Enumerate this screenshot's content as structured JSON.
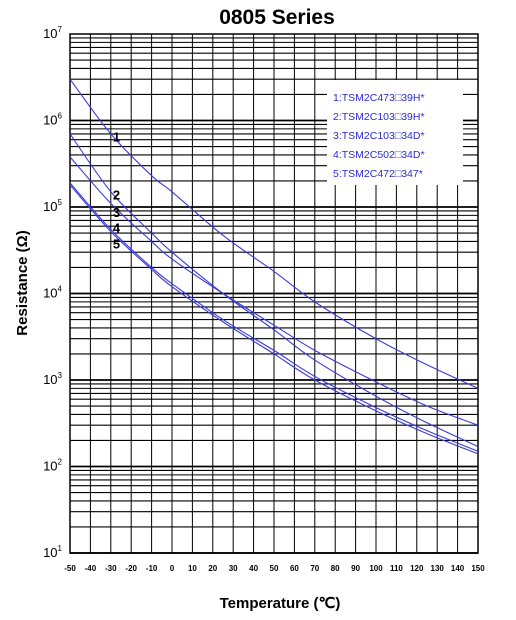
{
  "colors": {
    "series": "#3a3ae0",
    "grid": "#000000",
    "legend_text": "#2a2ad4"
  },
  "chart_data": {
    "type": "line",
    "title": "0805 Series",
    "xlabel": "Temperature (℃)",
    "ylabel": "Resistance (Ω)",
    "xlim": [
      -50,
      150
    ],
    "ylim": [
      10,
      10000000
    ],
    "yscale": "log",
    "grid": true,
    "legend_position": "top-right",
    "x_ticks": [
      "-50",
      "-40",
      "-30",
      "-20",
      "-10",
      "0",
      "10",
      "20",
      "30",
      "40",
      "50",
      "60",
      "70",
      "80",
      "90",
      "100",
      "110",
      "120",
      "130",
      "140",
      "150"
    ],
    "y_ticks": [
      {
        "base": "10",
        "exp": "7"
      },
      {
        "base": "10",
        "exp": "6"
      },
      {
        "base": "10",
        "exp": "5"
      },
      {
        "base": "10",
        "exp": "4"
      },
      {
        "base": "10",
        "exp": "3"
      },
      {
        "base": "10",
        "exp": "2"
      },
      {
        "base": "10",
        "exp": "1"
      }
    ],
    "x": [
      -50,
      -30,
      -10,
      0,
      25,
      50,
      70,
      100,
      125,
      150
    ],
    "series": [
      {
        "name": "1:TSM2C473□39H*",
        "marker": "1",
        "values": [
          3000000,
          700000,
          230000,
          150000,
          47000,
          18000,
          8000,
          3000,
          1500,
          800
        ]
      },
      {
        "name": "2:TSM2C103□39H*",
        "marker": "2",
        "values": [
          700000,
          150000,
          50000,
          30000,
          10000,
          3800,
          1700,
          650,
          320,
          170
        ]
      },
      {
        "name": "3:TSM2C103□34D*",
        "marker": "3",
        "values": [
          380000,
          110000,
          40000,
          25000,
          10000,
          4300,
          2200,
          950,
          500,
          300
        ]
      },
      {
        "name": "4:TSM2C502□34D*",
        "marker": "4",
        "values": [
          190000,
          55000,
          20000,
          13000,
          5000,
          2200,
          1100,
          480,
          260,
          150
        ]
      },
      {
        "name": "5:TSM2C472□347*",
        "marker": "5",
        "values": [
          180000,
          52000,
          19000,
          12000,
          4700,
          2000,
          1000,
          440,
          240,
          140
        ]
      }
    ],
    "curve_markers": [
      {
        "label": "1",
        "x": -27,
        "y": 650000
      },
      {
        "label": "2",
        "x": -27,
        "y": 140000
      },
      {
        "label": "3",
        "x": -27,
        "y": 88000
      },
      {
        "label": "4",
        "x": -27,
        "y": 58000
      },
      {
        "label": "5",
        "x": -27,
        "y": 38000
      }
    ]
  }
}
